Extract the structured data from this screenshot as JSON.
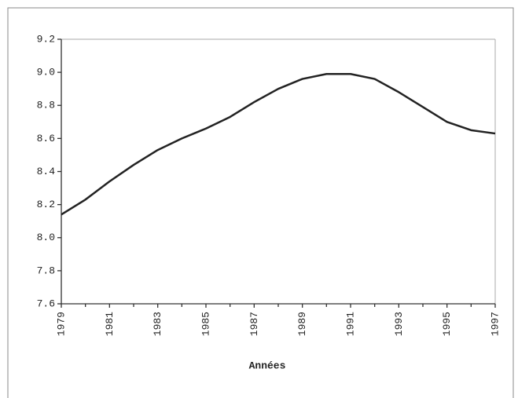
{
  "chart_data": {
    "type": "line",
    "x_label": "Années",
    "x": [
      1979,
      1980,
      1981,
      1982,
      1983,
      1984,
      1985,
      1986,
      1987,
      1988,
      1989,
      1990,
      1991,
      1992,
      1993,
      1994,
      1995,
      1996,
      1997
    ],
    "series": [
      {
        "color": "#222222",
        "values": [
          8.14,
          8.23,
          8.34,
          8.44,
          8.53,
          8.6,
          8.66,
          8.73,
          8.82,
          8.9,
          8.96,
          8.99,
          8.99,
          8.96,
          8.88,
          8.79,
          8.7,
          8.65,
          8.63
        ]
      }
    ],
    "xlim": [
      1979,
      1997
    ],
    "xticks": [
      1979,
      1981,
      1983,
      1985,
      1987,
      1989,
      1991,
      1993,
      1995,
      1997
    ],
    "ylim": [
      7.6,
      9.2
    ],
    "yticks": [
      7.6,
      7.8,
      {
        "value": 8,
        "label": "8.0"
      },
      8.2,
      8.4,
      8.6,
      8.8,
      {
        "value": 9,
        "label": "9.0"
      },
      9.2
    ],
    "grid": false
  }
}
